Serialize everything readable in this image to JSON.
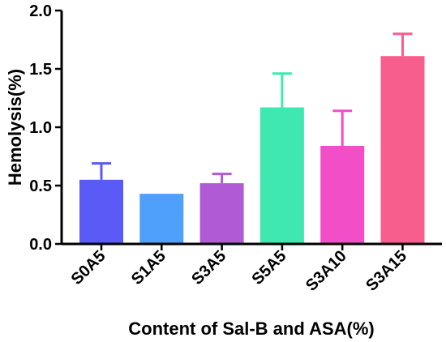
{
  "chart_data": {
    "type": "bar",
    "title": "",
    "xlabel": "Content of Sal-B and ASA(%)",
    "ylabel": "Hemolysis(%)",
    "ylim": [
      0,
      2.0
    ],
    "yticks": [
      0.0,
      0.5,
      1.0,
      1.5,
      2.0
    ],
    "ytick_labels": [
      "0.0",
      "0.5",
      "1.0",
      "1.5",
      "2.0"
    ],
    "categories": [
      "S0A5",
      "S1A5",
      "S3A5",
      "S5A5",
      "S3A10",
      "S3A15"
    ],
    "values": [
      0.55,
      0.43,
      0.52,
      1.17,
      0.84,
      1.61
    ],
    "errors": [
      0.14,
      0.0,
      0.08,
      0.29,
      0.3,
      0.19
    ],
    "colors": [
      "#5a5af7",
      "#4ea0fa",
      "#b05ad6",
      "#3fe8b0",
      "#f24ec8",
      "#f75e8e"
    ],
    "grid": false,
    "legend": "none"
  }
}
